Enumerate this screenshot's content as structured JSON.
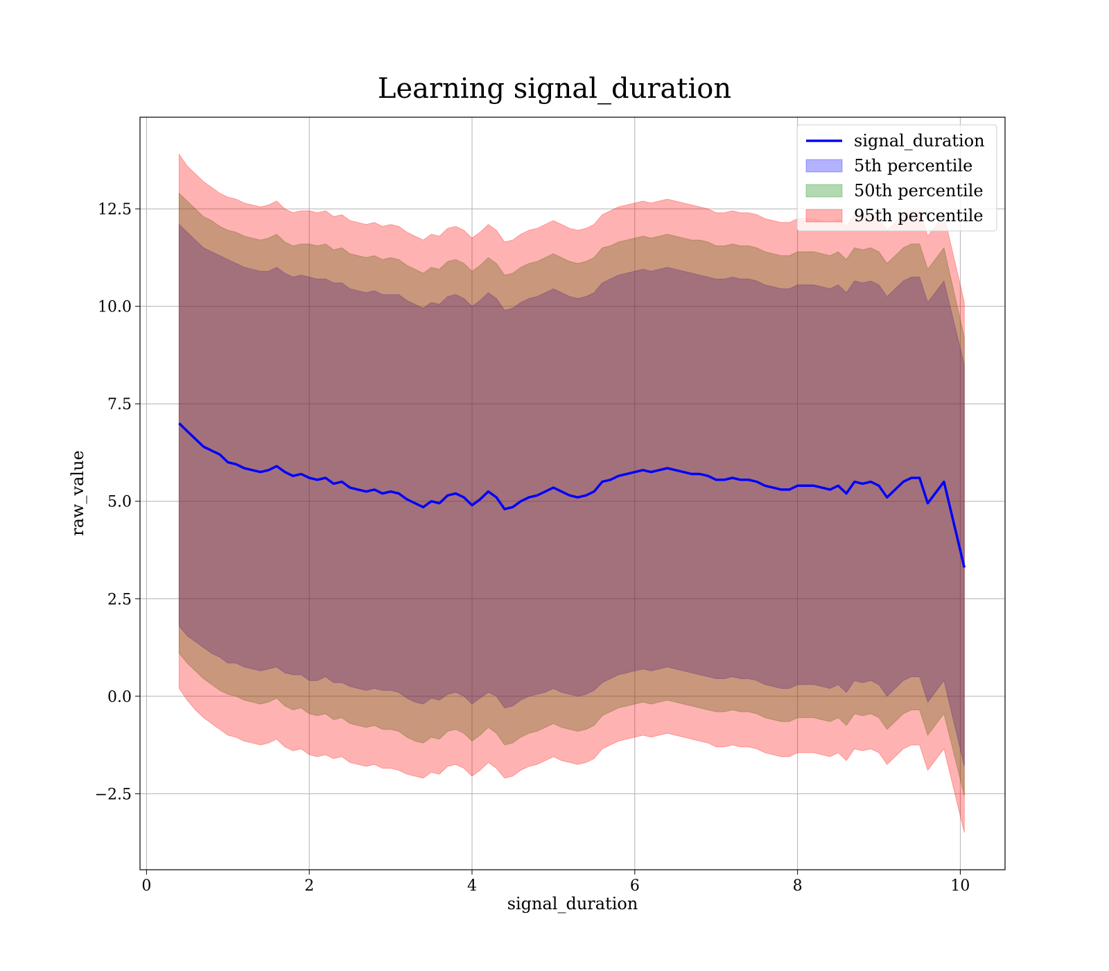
{
  "chart_data": {
    "type": "line",
    "title": "Learning signal_duration",
    "xlabel": "signal_duration",
    "ylabel": "raw_value",
    "xlim": [
      -0.08,
      10.55
    ],
    "ylim": [
      -4.45,
      14.85
    ],
    "xticks": [
      0,
      2,
      4,
      6,
      8,
      10
    ],
    "xtick_labels": [
      "0",
      "2",
      "4",
      "6",
      "8",
      "10"
    ],
    "yticks": [
      -2.5,
      0.0,
      2.5,
      5.0,
      7.5,
      10.0,
      12.5
    ],
    "ytick_labels": [
      "−2.5",
      "0.0",
      "2.5",
      "5.0",
      "7.5",
      "10.0",
      "12.5"
    ],
    "grid": true,
    "legend_position": "top-right",
    "x": [
      0.4,
      0.5,
      0.6,
      0.7,
      0.8,
      0.9,
      1.0,
      1.1,
      1.2,
      1.3,
      1.4,
      1.5,
      1.6,
      1.7,
      1.8,
      1.9,
      2.0,
      2.1,
      2.2,
      2.3,
      2.4,
      2.5,
      2.6,
      2.7,
      2.8,
      2.9,
      3.0,
      3.1,
      3.2,
      3.3,
      3.4,
      3.5,
      3.6,
      3.7,
      3.8,
      3.9,
      4.0,
      4.1,
      4.2,
      4.3,
      4.4,
      4.5,
      4.6,
      4.7,
      4.8,
      4.9,
      5.0,
      5.1,
      5.2,
      5.3,
      5.4,
      5.5,
      5.6,
      5.7,
      5.8,
      5.9,
      6.0,
      6.1,
      6.2,
      6.3,
      6.4,
      6.5,
      6.6,
      6.7,
      6.8,
      6.9,
      7.0,
      7.1,
      7.2,
      7.3,
      7.4,
      7.5,
      7.6,
      7.7,
      7.8,
      7.9,
      8.0,
      8.1,
      8.2,
      8.3,
      8.4,
      8.5,
      8.6,
      8.7,
      8.8,
      8.9,
      9.0,
      9.1,
      9.2,
      9.3,
      9.4,
      9.5,
      9.6,
      9.8,
      10.05
    ],
    "series": [
      {
        "name": "signal_duration",
        "color": "#0000ff",
        "values": [
          7.0,
          6.8,
          6.6,
          6.4,
          6.3,
          6.2,
          6.0,
          5.95,
          5.85,
          5.8,
          5.75,
          5.8,
          5.9,
          5.75,
          5.65,
          5.7,
          5.6,
          5.55,
          5.6,
          5.45,
          5.5,
          5.35,
          5.3,
          5.25,
          5.3,
          5.2,
          5.25,
          5.2,
          5.05,
          4.95,
          4.85,
          5.0,
          4.95,
          5.15,
          5.2,
          5.1,
          4.9,
          5.05,
          5.25,
          5.1,
          4.8,
          4.85,
          5.0,
          5.1,
          5.15,
          5.25,
          5.35,
          5.25,
          5.15,
          5.1,
          5.15,
          5.25,
          5.5,
          5.55,
          5.65,
          5.7,
          5.75,
          5.8,
          5.75,
          5.8,
          5.85,
          5.8,
          5.75,
          5.7,
          5.7,
          5.65,
          5.55,
          5.55,
          5.6,
          5.55,
          5.55,
          5.5,
          5.4,
          5.35,
          5.3,
          5.3,
          5.4,
          5.4,
          5.4,
          5.35,
          5.3,
          5.4,
          5.2,
          5.5,
          5.45,
          5.5,
          5.4,
          5.1,
          5.3,
          5.5,
          5.6,
          5.6,
          4.95,
          5.5,
          3.3
        ]
      },
      {
        "name": "5th percentile",
        "color": "#0000ff",
        "band": true,
        "values_lower": [
          1.8,
          1.55,
          1.4,
          1.25,
          1.1,
          1.0,
          0.85,
          0.85,
          0.75,
          0.7,
          0.65,
          0.7,
          0.75,
          0.6,
          0.55,
          0.55,
          0.4,
          0.4,
          0.5,
          0.35,
          0.35,
          0.25,
          0.2,
          0.15,
          0.2,
          0.15,
          0.15,
          0.1,
          -0.05,
          -0.15,
          -0.2,
          -0.05,
          -0.1,
          0.05,
          0.1,
          0.0,
          -0.2,
          -0.05,
          0.1,
          0.0,
          -0.3,
          -0.25,
          -0.1,
          0.0,
          0.05,
          0.1,
          0.2,
          0.1,
          0.05,
          0.0,
          0.05,
          0.15,
          0.35,
          0.45,
          0.55,
          0.6,
          0.65,
          0.7,
          0.65,
          0.7,
          0.75,
          0.7,
          0.65,
          0.6,
          0.55,
          0.5,
          0.45,
          0.45,
          0.5,
          0.45,
          0.45,
          0.4,
          0.3,
          0.25,
          0.2,
          0.2,
          0.3,
          0.3,
          0.3,
          0.25,
          0.2,
          0.3,
          0.1,
          0.4,
          0.35,
          0.4,
          0.3,
          0.0,
          0.2,
          0.4,
          0.5,
          0.5,
          -0.15,
          0.4,
          -1.8
        ],
        "values_upper": [
          12.1,
          11.9,
          11.7,
          11.5,
          11.4,
          11.3,
          11.2,
          11.1,
          11.0,
          10.95,
          10.9,
          10.9,
          11.0,
          10.85,
          10.75,
          10.8,
          10.75,
          10.7,
          10.7,
          10.6,
          10.6,
          10.45,
          10.4,
          10.35,
          10.4,
          10.3,
          10.3,
          10.3,
          10.15,
          10.05,
          9.95,
          10.1,
          10.05,
          10.25,
          10.3,
          10.2,
          10.0,
          10.15,
          10.35,
          10.2,
          9.9,
          9.95,
          10.1,
          10.2,
          10.25,
          10.35,
          10.45,
          10.35,
          10.25,
          10.2,
          10.25,
          10.35,
          10.6,
          10.7,
          10.8,
          10.85,
          10.9,
          10.95,
          10.9,
          10.95,
          11.0,
          10.95,
          10.9,
          10.85,
          10.8,
          10.75,
          10.7,
          10.7,
          10.75,
          10.7,
          10.7,
          10.65,
          10.55,
          10.5,
          10.45,
          10.45,
          10.55,
          10.55,
          10.55,
          10.5,
          10.45,
          10.55,
          10.35,
          10.65,
          10.6,
          10.65,
          10.55,
          10.25,
          10.45,
          10.65,
          10.75,
          10.75,
          10.1,
          10.65,
          8.5
        ]
      },
      {
        "name": "50th percentile",
        "color": "#008000",
        "band": true,
        "values_lower": [
          1.1,
          0.85,
          0.65,
          0.45,
          0.3,
          0.15,
          0.05,
          0.0,
          -0.1,
          -0.15,
          -0.2,
          -0.15,
          -0.05,
          -0.25,
          -0.35,
          -0.3,
          -0.45,
          -0.5,
          -0.45,
          -0.6,
          -0.55,
          -0.7,
          -0.75,
          -0.8,
          -0.75,
          -0.85,
          -0.85,
          -0.9,
          -1.05,
          -1.15,
          -1.2,
          -1.05,
          -1.1,
          -0.9,
          -0.85,
          -0.95,
          -1.15,
          -1.0,
          -0.8,
          -0.95,
          -1.25,
          -1.2,
          -1.05,
          -0.95,
          -0.9,
          -0.8,
          -0.7,
          -0.8,
          -0.85,
          -0.9,
          -0.85,
          -0.75,
          -0.5,
          -0.4,
          -0.3,
          -0.25,
          -0.2,
          -0.15,
          -0.2,
          -0.15,
          -0.1,
          -0.15,
          -0.2,
          -0.25,
          -0.3,
          -0.35,
          -0.4,
          -0.4,
          -0.35,
          -0.4,
          -0.4,
          -0.45,
          -0.55,
          -0.6,
          -0.65,
          -0.65,
          -0.55,
          -0.55,
          -0.55,
          -0.6,
          -0.65,
          -0.55,
          -0.75,
          -0.45,
          -0.5,
          -0.45,
          -0.55,
          -0.85,
          -0.65,
          -0.45,
          -0.35,
          -0.35,
          -1.0,
          -0.45,
          -2.55
        ],
        "values_upper": [
          12.9,
          12.7,
          12.5,
          12.3,
          12.2,
          12.05,
          11.95,
          11.9,
          11.8,
          11.75,
          11.7,
          11.75,
          11.85,
          11.65,
          11.55,
          11.6,
          11.6,
          11.55,
          11.6,
          11.45,
          11.5,
          11.35,
          11.3,
          11.25,
          11.3,
          11.2,
          11.25,
          11.2,
          11.05,
          10.95,
          10.85,
          11.0,
          10.95,
          11.15,
          11.2,
          11.1,
          10.9,
          11.05,
          11.25,
          11.1,
          10.8,
          10.85,
          11.0,
          11.1,
          11.15,
          11.25,
          11.35,
          11.25,
          11.15,
          11.1,
          11.15,
          11.25,
          11.5,
          11.55,
          11.65,
          11.7,
          11.75,
          11.8,
          11.75,
          11.8,
          11.85,
          11.8,
          11.75,
          11.7,
          11.7,
          11.65,
          11.55,
          11.55,
          11.6,
          11.55,
          11.55,
          11.5,
          11.4,
          11.35,
          11.3,
          11.3,
          11.4,
          11.4,
          11.4,
          11.35,
          11.3,
          11.4,
          11.2,
          11.5,
          11.45,
          11.5,
          11.4,
          11.1,
          11.3,
          11.5,
          11.6,
          11.6,
          10.95,
          11.5,
          9.2
        ]
      },
      {
        "name": "95th percentile",
        "color": "#ff0000",
        "band": true,
        "values_lower": [
          0.2,
          -0.1,
          -0.35,
          -0.55,
          -0.7,
          -0.85,
          -1.0,
          -1.05,
          -1.15,
          -1.2,
          -1.25,
          -1.2,
          -1.1,
          -1.3,
          -1.4,
          -1.35,
          -1.5,
          -1.55,
          -1.5,
          -1.6,
          -1.55,
          -1.7,
          -1.75,
          -1.8,
          -1.75,
          -1.85,
          -1.85,
          -1.9,
          -2.0,
          -2.05,
          -2.1,
          -1.95,
          -2.0,
          -1.8,
          -1.75,
          -1.85,
          -2.05,
          -1.9,
          -1.7,
          -1.85,
          -2.1,
          -2.05,
          -1.9,
          -1.8,
          -1.75,
          -1.65,
          -1.55,
          -1.65,
          -1.7,
          -1.75,
          -1.7,
          -1.6,
          -1.35,
          -1.25,
          -1.15,
          -1.1,
          -1.05,
          -1.0,
          -1.05,
          -1.0,
          -0.95,
          -1.0,
          -1.05,
          -1.1,
          -1.15,
          -1.2,
          -1.3,
          -1.3,
          -1.25,
          -1.3,
          -1.3,
          -1.35,
          -1.45,
          -1.5,
          -1.55,
          -1.55,
          -1.45,
          -1.45,
          -1.45,
          -1.5,
          -1.55,
          -1.45,
          -1.65,
          -1.35,
          -1.4,
          -1.35,
          -1.45,
          -1.75,
          -1.55,
          -1.35,
          -1.25,
          -1.25,
          -1.9,
          -1.35,
          -3.5
        ],
        "values_upper": [
          13.9,
          13.6,
          13.4,
          13.2,
          13.05,
          12.9,
          12.8,
          12.75,
          12.65,
          12.6,
          12.55,
          12.6,
          12.7,
          12.5,
          12.4,
          12.45,
          12.45,
          12.4,
          12.45,
          12.3,
          12.35,
          12.2,
          12.15,
          12.1,
          12.15,
          12.05,
          12.1,
          12.05,
          11.9,
          11.8,
          11.7,
          11.85,
          11.8,
          12.0,
          12.05,
          11.95,
          11.75,
          11.9,
          12.1,
          11.95,
          11.65,
          11.7,
          11.85,
          11.95,
          12.0,
          12.1,
          12.2,
          12.1,
          12.0,
          11.95,
          12.0,
          12.1,
          12.35,
          12.45,
          12.55,
          12.6,
          12.65,
          12.7,
          12.65,
          12.7,
          12.75,
          12.7,
          12.65,
          12.6,
          12.55,
          12.5,
          12.4,
          12.4,
          12.45,
          12.4,
          12.4,
          12.35,
          12.25,
          12.2,
          12.15,
          12.15,
          12.25,
          12.25,
          12.25,
          12.2,
          12.15,
          12.25,
          12.05,
          12.35,
          12.3,
          12.35,
          12.25,
          11.95,
          12.15,
          12.35,
          12.45,
          12.45,
          11.8,
          12.35,
          10.1
        ]
      }
    ]
  }
}
